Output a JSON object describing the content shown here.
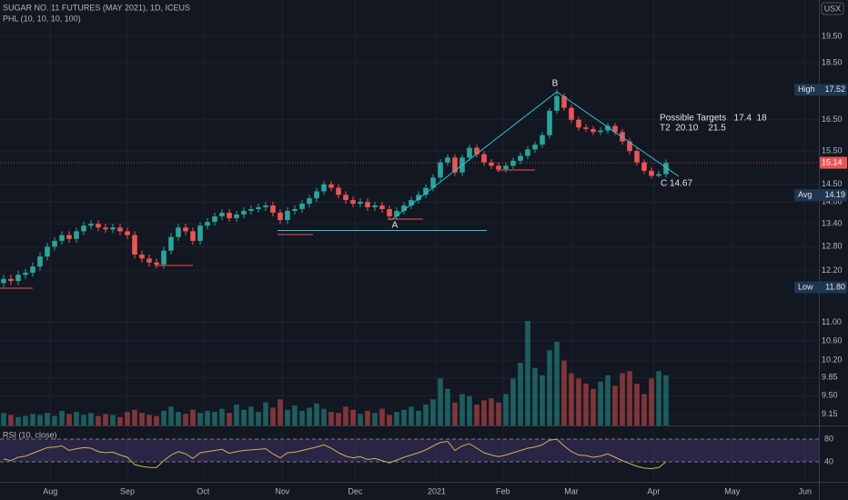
{
  "chart_data": {
    "type": "candlestick",
    "title": "SUGAR NO. 11 FUTURES (MAY 2021), 1D, ICEUS",
    "subtitle": "PHL (10, 10, 10, 100)",
    "currency": "USX",
    "log_scale": true,
    "ylim": [
      8.95,
      20.97
    ],
    "yticks": [
      {
        "value": 19.5,
        "label": "19.50"
      },
      {
        "value": 18.5,
        "label": "18.50"
      },
      {
        "value": 16.5,
        "label": "16.50"
      },
      {
        "value": 15.5,
        "label": "15.50"
      },
      {
        "value": 14.5,
        "label": "14.50"
      },
      {
        "value": 14,
        "label": "14.00"
      },
      {
        "value": 13.4,
        "label": "13.40"
      },
      {
        "value": 12.8,
        "label": "12.80"
      },
      {
        "value": 12.2,
        "label": "12.20"
      },
      {
        "value": 11,
        "label": "11.00"
      },
      {
        "value": 10.6,
        "label": "10.60"
      },
      {
        "value": 10.2,
        "label": "10.20"
      },
      9.85,
      {
        "value": 9.5,
        "label": "9.50"
      },
      9.15
    ],
    "xlim": [
      -0.5,
      112
    ],
    "xticks": [
      {
        "value": 6.4,
        "label": "Aug"
      },
      {
        "value": 17,
        "label": "Sep"
      },
      {
        "value": 27.4,
        "label": "Oct"
      },
      {
        "value": 38.3,
        "label": "Nov"
      },
      {
        "value": 48.3,
        "label": "Dec"
      },
      {
        "value": 59.5,
        "label": "2021"
      },
      {
        "value": 68.6,
        "label": "Feb"
      },
      {
        "value": 78,
        "label": "Mar"
      },
      {
        "value": 89.3,
        "label": "Apr"
      },
      {
        "value": 100.1,
        "label": "May"
      },
      {
        "value": 110.1,
        "label": "Jun"
      }
    ],
    "open": [
      11.9,
      12.0,
      11.95,
      12.1,
      12.15,
      12.3,
      12.55,
      12.8,
      12.95,
      13.1,
      13.0,
      13.2,
      13.35,
      13.4,
      13.3,
      13.25,
      13.3,
      13.2,
      13.1,
      12.6,
      12.5,
      12.4,
      12.35,
      12.7,
      13.05,
      13.3,
      13.2,
      12.95,
      13.35,
      13.45,
      13.6,
      13.7,
      13.55,
      13.65,
      13.75,
      13.8,
      13.85,
      13.9,
      13.7,
      13.5,
      13.75,
      13.8,
      13.95,
      14.1,
      14.3,
      14.5,
      14.4,
      14.2,
      14.05,
      13.95,
      14.0,
      13.85,
      13.9,
      13.8,
      13.6,
      13.75,
      13.9,
      14.05,
      14.2,
      14.4,
      14.7,
      15.15,
      15.3,
      14.85,
      15.3,
      15.6,
      15.4,
      15.15,
      15.05,
      14.95,
      15.05,
      15.2,
      15.35,
      15.55,
      15.7,
      16.0,
      16.8,
      17.3,
      16.9,
      16.5,
      16.25,
      16.2,
      16.1,
      16.15,
      16.3,
      16.1,
      15.8,
      15.5,
      15.15,
      14.9,
      14.75,
      14.8
    ],
    "high": [
      12.1,
      12.1,
      12.2,
      12.25,
      12.4,
      12.65,
      12.9,
      13.05,
      13.2,
      13.2,
      13.3,
      13.45,
      13.5,
      13.5,
      13.4,
      13.4,
      13.4,
      13.3,
      13.2,
      12.7,
      12.6,
      12.5,
      12.8,
      13.15,
      13.4,
      13.4,
      13.3,
      13.45,
      13.55,
      13.7,
      13.8,
      13.8,
      13.75,
      13.85,
      13.9,
      13.95,
      14.0,
      14.0,
      13.8,
      13.85,
      13.9,
      14.05,
      14.2,
      14.4,
      14.6,
      14.6,
      14.5,
      14.3,
      14.15,
      14.1,
      14.1,
      14.0,
      14.0,
      13.9,
      13.85,
      14.0,
      14.15,
      14.3,
      14.5,
      14.8,
      15.25,
      15.4,
      15.4,
      15.4,
      15.7,
      15.7,
      15.5,
      15.25,
      15.15,
      15.15,
      15.3,
      15.45,
      15.65,
      15.8,
      16.1,
      16.9,
      17.52,
      17.4,
      17.0,
      16.6,
      16.35,
      16.3,
      16.25,
      16.4,
      16.4,
      16.2,
      15.9,
      15.6,
      15.25,
      15.0,
      14.9,
      15.24
    ],
    "low": [
      11.8,
      11.85,
      11.85,
      12.0,
      12.05,
      12.2,
      12.45,
      12.7,
      12.85,
      12.9,
      12.9,
      13.1,
      13.25,
      13.2,
      13.15,
      13.15,
      13.1,
      13.0,
      12.5,
      12.4,
      12.3,
      12.25,
      12.25,
      12.6,
      12.95,
      13.1,
      12.85,
      12.85,
      13.25,
      13.35,
      13.5,
      13.45,
      13.45,
      13.55,
      13.65,
      13.7,
      13.75,
      13.6,
      13.4,
      13.4,
      13.65,
      13.7,
      13.85,
      14.0,
      14.2,
      14.3,
      14.1,
      13.95,
      13.85,
      13.85,
      13.75,
      13.75,
      13.7,
      13.5,
      13.5,
      13.65,
      13.8,
      13.95,
      14.1,
      14.3,
      14.6,
      15.05,
      14.75,
      14.75,
      15.2,
      15.3,
      15.05,
      14.95,
      14.85,
      14.85,
      14.95,
      15.1,
      15.25,
      15.45,
      15.6,
      15.9,
      16.7,
      16.8,
      16.4,
      16.15,
      16.1,
      16.0,
      16.0,
      16.05,
      16.0,
      15.7,
      15.4,
      15.05,
      14.8,
      14.67,
      14.7,
      14.7
    ],
    "close": [
      12.0,
      11.95,
      12.1,
      12.15,
      12.3,
      12.55,
      12.8,
      12.95,
      13.1,
      13.0,
      13.2,
      13.35,
      13.4,
      13.3,
      13.25,
      13.3,
      13.2,
      13.1,
      12.6,
      12.5,
      12.4,
      12.35,
      12.7,
      13.05,
      13.3,
      13.2,
      12.95,
      13.35,
      13.45,
      13.6,
      13.7,
      13.55,
      13.65,
      13.75,
      13.8,
      13.85,
      13.9,
      13.7,
      13.5,
      13.75,
      13.8,
      13.95,
      14.1,
      14.3,
      14.5,
      14.4,
      14.2,
      14.05,
      13.95,
      14.0,
      13.85,
      13.9,
      13.8,
      13.6,
      13.75,
      13.9,
      14.05,
      14.2,
      14.4,
      14.7,
      15.15,
      15.3,
      14.85,
      15.3,
      15.6,
      15.4,
      15.15,
      15.05,
      14.95,
      15.05,
      15.2,
      15.35,
      15.55,
      15.7,
      16.0,
      16.8,
      17.3,
      16.9,
      16.5,
      16.25,
      16.2,
      16.1,
      16.15,
      16.3,
      16.1,
      15.8,
      15.5,
      15.15,
      14.9,
      14.75,
      14.8,
      15.14
    ],
    "up_color": "#26a69a",
    "down_color": "#ef5350",
    "volume": {
      "ylim": [
        0,
        100
      ],
      "values": [
        12,
        10,
        8,
        9,
        11,
        10,
        12,
        9,
        14,
        11,
        13,
        10,
        12,
        9,
        11,
        10,
        8,
        13,
        15,
        12,
        10,
        9,
        14,
        18,
        13,
        11,
        15,
        12,
        14,
        13,
        16,
        12,
        20,
        15,
        18,
        13,
        22,
        17,
        25,
        15,
        19,
        14,
        17,
        21,
        16,
        13,
        12,
        18,
        15,
        11,
        14,
        12,
        16,
        10,
        13,
        15,
        18,
        14,
        20,
        25,
        45,
        35,
        22,
        30,
        28,
        20,
        24,
        26,
        22,
        30,
        45,
        60,
        100,
        55,
        48,
        72,
        80,
        62,
        50,
        45,
        40,
        35,
        42,
        48,
        38,
        50,
        52,
        40,
        30,
        45,
        52,
        48
      ]
    },
    "rsi": {
      "name": "RSI (10, close)",
      "color": "#c9b458",
      "ylim": [
        0,
        100
      ],
      "yticks": [
        80,
        40
      ],
      "values": [
        45,
        42,
        48,
        50,
        55,
        60,
        65,
        66,
        68,
        60,
        63,
        65,
        64,
        58,
        56,
        57,
        52,
        48,
        35,
        32,
        30,
        30,
        42,
        52,
        58,
        54,
        46,
        56,
        58,
        60,
        62,
        55,
        58,
        60,
        61,
        62,
        63,
        54,
        47,
        56,
        57,
        60,
        63,
        66,
        70,
        64,
        56,
        50,
        47,
        49,
        44,
        46,
        42,
        38,
        43,
        48,
        52,
        56,
        61,
        68,
        74,
        76,
        60,
        68,
        72,
        64,
        56,
        52,
        49,
        52,
        56,
        60,
        64,
        66,
        70,
        78,
        80,
        68,
        58,
        52,
        51,
        48,
        50,
        54,
        48,
        42,
        37,
        32,
        29,
        28,
        30,
        40
      ]
    },
    "markers": [
      {
        "name": "High",
        "value": 17.52
      },
      {
        "name": "Avg",
        "value": 14.19
      },
      {
        "name": "Low",
        "value": 11.8,
        "label": "11.80"
      }
    ],
    "last_price": 15.14,
    "annotations": [
      "B",
      "A",
      "C 14.67",
      "Possible Targets   17.4  18",
      "T2  20.10    21.5"
    ]
  }
}
